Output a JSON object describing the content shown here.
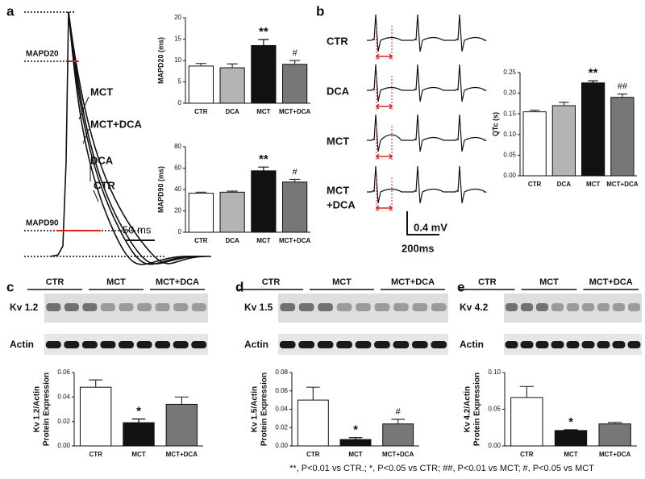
{
  "panel_labels": [
    "a",
    "b",
    "c",
    "d",
    "e"
  ],
  "panel_a": {
    "markers": [
      "MAPD20",
      "MAPD90"
    ],
    "trace_labels": [
      "MCT",
      "MCT+DCA",
      "DCA",
      "CTR"
    ],
    "scale": "50 ms"
  },
  "panel_b": {
    "row_labels": [
      [
        "CTR"
      ],
      [
        "DCA"
      ],
      [
        "MCT"
      ],
      [
        "MCT",
        "+DCA"
      ]
    ],
    "scale_v": "0.4 mV",
    "scale_t": "200ms"
  },
  "blots": [
    {
      "groups": [
        "CTR",
        "MCT",
        "MCT+DCA"
      ],
      "protein": "Kv 1.2",
      "control": "Actin"
    },
    {
      "groups": [
        "CTR",
        "MCT",
        "MCT+DCA"
      ],
      "protein": "Kv 1.5",
      "control": "Actin"
    },
    {
      "groups": [
        "CTR",
        "MCT",
        "MCT+DCA"
      ],
      "protein": "Kv 4.2",
      "control": "Actin"
    }
  ],
  "footnote": "**, P<0.01 vs CTR.; *, P<0.05 vs CTR; ##, P<0.01 vs MCT; #, P<0.05 vs MCT",
  "chart_data": [
    {
      "type": "bar",
      "ylabel": [
        "MAPD20 (ms)"
      ],
      "categories": [
        "CTR",
        "DCA",
        "MCT",
        "MCT+DCA"
      ],
      "values": [
        8.7,
        8.3,
        13.5,
        9.1
      ],
      "errors": [
        0.6,
        0.9,
        1.4,
        0.9
      ],
      "annotations": [
        null,
        null,
        "**",
        "#"
      ],
      "colors": [
        "#ffffff",
        "#b4b4b4",
        "#111111",
        "#777777"
      ],
      "ylim": [
        0,
        20
      ],
      "yticks": [
        0,
        5,
        10,
        15,
        20
      ]
    },
    {
      "type": "bar",
      "ylabel": [
        "MAPD90 (ms)"
      ],
      "categories": [
        "CTR",
        "DCA",
        "MCT",
        "MCT+DCA"
      ],
      "values": [
        36.5,
        37.5,
        57.5,
        47
      ],
      "errors": [
        1,
        1,
        3.5,
        2.5
      ],
      "annotations": [
        null,
        null,
        "**",
        "#"
      ],
      "colors": [
        "#ffffff",
        "#b4b4b4",
        "#111111",
        "#777777"
      ],
      "ylim": [
        0,
        80
      ],
      "yticks": [
        0,
        20,
        40,
        60,
        80
      ]
    },
    {
      "type": "bar",
      "ylabel": [
        "QTc (s)"
      ],
      "categories": [
        "CTR",
        "DCA",
        "MCT",
        "MCT+DCA"
      ],
      "values": [
        0.155,
        0.17,
        0.225,
        0.19
      ],
      "errors": [
        0.004,
        0.008,
        0.005,
        0.008
      ],
      "annotations": [
        null,
        null,
        "**",
        "##"
      ],
      "colors": [
        "#ffffff",
        "#b4b4b4",
        "#111111",
        "#777777"
      ],
      "ylim": [
        0,
        0.25
      ],
      "yticks": [
        {
          "value": 0,
          "label": "0.00"
        },
        0.05,
        {
          "value": 0.1,
          "label": "0.10"
        },
        0.15,
        {
          "value": 0.2,
          "label": "0.20"
        },
        0.25
      ]
    },
    {
      "type": "bar",
      "ylabel": [
        "Kv 1.2/Actin",
        "Protein Expression"
      ],
      "categories": [
        "CTR",
        "MCT",
        "MCT+DCA"
      ],
      "values": [
        0.048,
        0.019,
        0.034
      ],
      "errors": [
        0.006,
        0.003,
        0.006
      ],
      "annotations": [
        null,
        "*",
        null
      ],
      "colors": [
        "#ffffff",
        "#111111",
        "#777777"
      ],
      "ylim": [
        0,
        0.06
      ],
      "yticks": [
        {
          "value": 0,
          "label": "0.00"
        },
        0.02,
        0.04,
        0.06
      ]
    },
    {
      "type": "bar",
      "ylabel": [
        "Kv 1.5/Actin",
        "Protein Expression"
      ],
      "categories": [
        "CTR",
        "MCT",
        "MCT+DCA"
      ],
      "values": [
        0.05,
        0.007,
        0.024
      ],
      "errors": [
        0.014,
        0.002,
        0.005
      ],
      "annotations": [
        null,
        "*",
        "#"
      ],
      "colors": [
        "#ffffff",
        "#111111",
        "#777777"
      ],
      "ylim": [
        0,
        0.08
      ],
      "yticks": [
        {
          "value": 0,
          "label": "0.00"
        },
        0.02,
        0.04,
        0.06,
        0.08
      ]
    },
    {
      "type": "bar",
      "ylabel": [
        "Kv 4.2/Actin",
        "Protein Expression"
      ],
      "categories": [
        "CTR",
        "MCT",
        "MCT+DCA"
      ],
      "values": [
        0.066,
        0.021,
        0.03
      ],
      "errors": [
        0.015,
        0.001,
        0.002
      ],
      "annotations": [
        null,
        "*",
        null
      ],
      "colors": [
        "#ffffff",
        "#111111",
        "#777777"
      ],
      "ylim": [
        0,
        0.1
      ],
      "yticks": [
        {
          "value": 0,
          "label": "0.00"
        },
        0.05,
        {
          "value": 0.1,
          "label": "0.10"
        }
      ]
    }
  ]
}
